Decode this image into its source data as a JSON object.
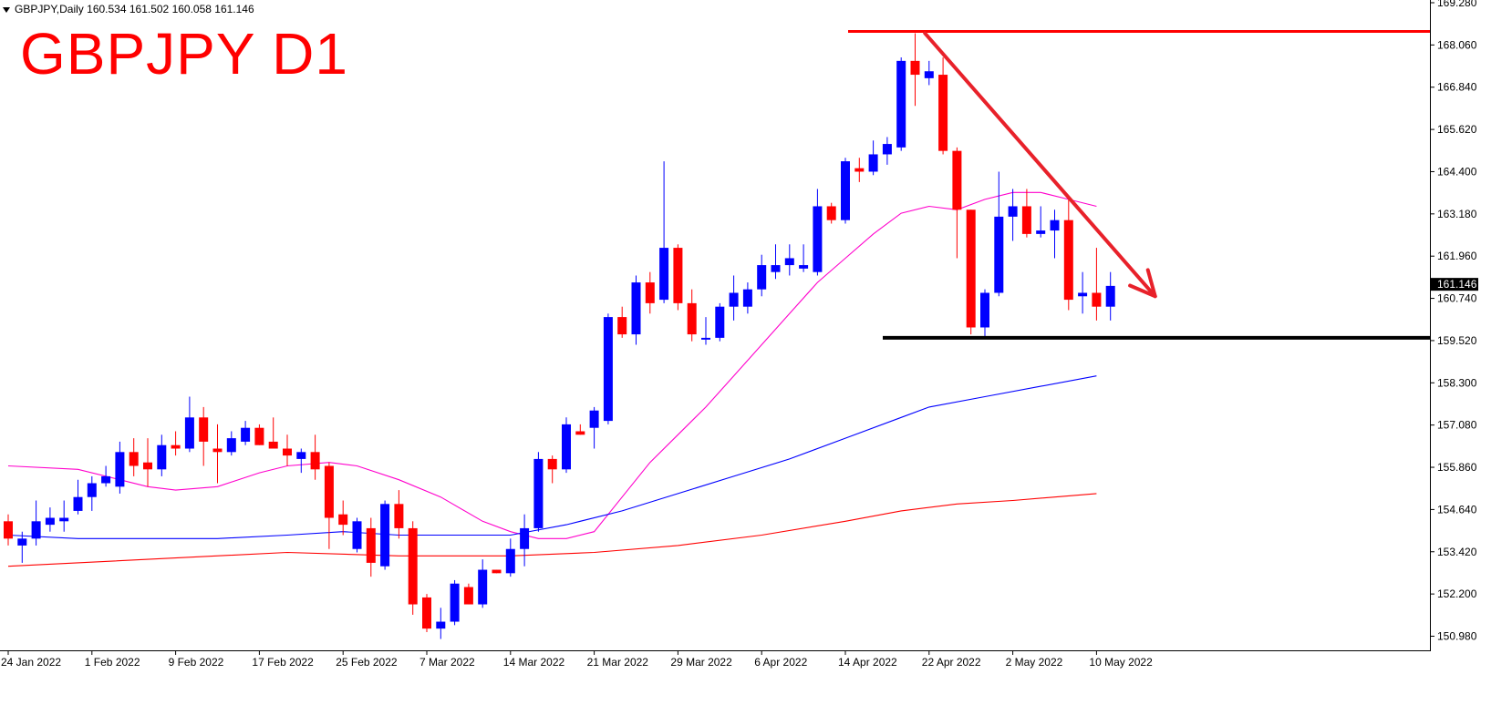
{
  "header": {
    "symbol_line": "GBPJPY,Daily  160.534 161.502 160.058 161.146"
  },
  "overlay_title": "GBPJPY D1",
  "chart_data": {
    "type": "candlestick",
    "symbol": "GBPJPY",
    "timeframe": "Daily",
    "ohlc_header": {
      "open": 160.534,
      "high": 161.502,
      "low": 160.058,
      "close": 161.146
    },
    "current_price_label": "161.146",
    "y_ticks": [
      "169.280",
      "168.060",
      "166.840",
      "165.620",
      "164.400",
      "163.180",
      "161.960",
      "160.740",
      "159.520",
      "158.300",
      "157.080",
      "155.860",
      "154.640",
      "153.420",
      "152.200",
      "150.980"
    ],
    "ylim": [
      150.7,
      169.4
    ],
    "x_labels": [
      {
        "text": "24 Jan 2022",
        "index": 0
      },
      {
        "text": "1 Feb 2022",
        "index": 6
      },
      {
        "text": "9 Feb 2022",
        "index": 12
      },
      {
        "text": "17 Feb 2022",
        "index": 18
      },
      {
        "text": "25 Feb 2022",
        "index": 24
      },
      {
        "text": "7 Mar 2022",
        "index": 30
      },
      {
        "text": "14 Mar 2022",
        "index": 36
      },
      {
        "text": "21 Mar 2022",
        "index": 42
      },
      {
        "text": "29 Mar 2022",
        "index": 48
      },
      {
        "text": "6 Apr 2022",
        "index": 54
      },
      {
        "text": "14 Apr 2022",
        "index": 60
      },
      {
        "text": "22 Apr 2022",
        "index": 66
      },
      {
        "text": "2 May 2022",
        "index": 72
      },
      {
        "text": "10 May 2022",
        "index": 78
      }
    ],
    "candles": [
      {
        "o": 154.3,
        "h": 154.5,
        "l": 153.6,
        "c": 153.8
      },
      {
        "o": 153.6,
        "h": 154.0,
        "l": 153.1,
        "c": 153.8
      },
      {
        "o": 153.8,
        "h": 154.9,
        "l": 153.6,
        "c": 154.3
      },
      {
        "o": 154.2,
        "h": 154.7,
        "l": 154.0,
        "c": 154.4
      },
      {
        "o": 154.3,
        "h": 154.9,
        "l": 154.0,
        "c": 154.4
      },
      {
        "o": 154.6,
        "h": 155.5,
        "l": 154.5,
        "c": 155.0
      },
      {
        "o": 155.0,
        "h": 155.6,
        "l": 154.6,
        "c": 155.4
      },
      {
        "o": 155.4,
        "h": 155.9,
        "l": 155.3,
        "c": 155.6
      },
      {
        "o": 155.3,
        "h": 156.6,
        "l": 155.1,
        "c": 156.3
      },
      {
        "o": 156.3,
        "h": 156.7,
        "l": 155.6,
        "c": 155.9
      },
      {
        "o": 156.0,
        "h": 156.7,
        "l": 155.3,
        "c": 155.8
      },
      {
        "o": 155.8,
        "h": 156.8,
        "l": 155.6,
        "c": 156.5
      },
      {
        "o": 156.5,
        "h": 156.9,
        "l": 156.2,
        "c": 156.4
      },
      {
        "o": 156.4,
        "h": 157.9,
        "l": 156.3,
        "c": 157.3
      },
      {
        "o": 157.3,
        "h": 157.6,
        "l": 155.9,
        "c": 156.6
      },
      {
        "o": 156.4,
        "h": 157.1,
        "l": 155.4,
        "c": 156.3
      },
      {
        "o": 156.3,
        "h": 156.9,
        "l": 156.2,
        "c": 156.7
      },
      {
        "o": 156.6,
        "h": 157.2,
        "l": 156.5,
        "c": 157.0
      },
      {
        "o": 157.0,
        "h": 157.1,
        "l": 156.5,
        "c": 156.5
      },
      {
        "o": 156.6,
        "h": 157.3,
        "l": 156.4,
        "c": 156.4
      },
      {
        "o": 156.4,
        "h": 156.8,
        "l": 155.9,
        "c": 156.2
      },
      {
        "o": 156.1,
        "h": 156.4,
        "l": 155.7,
        "c": 156.3
      },
      {
        "o": 156.3,
        "h": 156.8,
        "l": 155.5,
        "c": 155.8
      },
      {
        "o": 155.9,
        "h": 156.0,
        "l": 153.5,
        "c": 154.4
      },
      {
        "o": 154.5,
        "h": 154.9,
        "l": 153.9,
        "c": 154.2
      },
      {
        "o": 153.5,
        "h": 154.4,
        "l": 153.4,
        "c": 154.3
      },
      {
        "o": 154.1,
        "h": 154.4,
        "l": 152.7,
        "c": 153.1
      },
      {
        "o": 153.0,
        "h": 154.9,
        "l": 152.9,
        "c": 154.8
      },
      {
        "o": 154.8,
        "h": 155.2,
        "l": 153.8,
        "c": 154.1
      },
      {
        "o": 154.1,
        "h": 154.3,
        "l": 151.6,
        "c": 151.9
      },
      {
        "o": 152.1,
        "h": 152.2,
        "l": 151.1,
        "c": 151.2
      },
      {
        "o": 151.2,
        "h": 151.8,
        "l": 150.9,
        "c": 151.4
      },
      {
        "o": 151.4,
        "h": 152.6,
        "l": 151.3,
        "c": 152.5
      },
      {
        "o": 152.4,
        "h": 152.5,
        "l": 151.9,
        "c": 151.9
      },
      {
        "o": 151.9,
        "h": 153.2,
        "l": 151.8,
        "c": 152.9
      },
      {
        "o": 152.9,
        "h": 152.9,
        "l": 152.8,
        "c": 152.8
      },
      {
        "o": 152.8,
        "h": 153.8,
        "l": 152.7,
        "c": 153.5
      },
      {
        "o": 153.5,
        "h": 154.5,
        "l": 153.0,
        "c": 154.1
      },
      {
        "o": 154.1,
        "h": 156.3,
        "l": 154.0,
        "c": 156.1
      },
      {
        "o": 156.1,
        "h": 156.2,
        "l": 155.4,
        "c": 155.8
      },
      {
        "o": 155.8,
        "h": 157.3,
        "l": 155.7,
        "c": 157.1
      },
      {
        "o": 156.9,
        "h": 157.1,
        "l": 156.8,
        "c": 156.8
      },
      {
        "o": 157.0,
        "h": 157.6,
        "l": 156.4,
        "c": 157.5
      },
      {
        "o": 157.2,
        "h": 160.3,
        "l": 157.1,
        "c": 160.2
      },
      {
        "o": 160.2,
        "h": 160.5,
        "l": 159.6,
        "c": 159.7
      },
      {
        "o": 159.7,
        "h": 161.4,
        "l": 159.4,
        "c": 161.2
      },
      {
        "o": 161.2,
        "h": 161.5,
        "l": 160.3,
        "c": 160.6
      },
      {
        "o": 160.7,
        "h": 164.7,
        "l": 160.6,
        "c": 162.2
      },
      {
        "o": 162.2,
        "h": 162.3,
        "l": 160.4,
        "c": 160.6
      },
      {
        "o": 160.6,
        "h": 161.0,
        "l": 159.5,
        "c": 159.7
      },
      {
        "o": 159.6,
        "h": 160.2,
        "l": 159.4,
        "c": 159.6
      },
      {
        "o": 159.6,
        "h": 160.6,
        "l": 159.5,
        "c": 160.5
      },
      {
        "o": 160.5,
        "h": 161.4,
        "l": 160.1,
        "c": 160.9
      },
      {
        "o": 160.5,
        "h": 161.2,
        "l": 160.3,
        "c": 161.0
      },
      {
        "o": 161.0,
        "h": 162.0,
        "l": 160.8,
        "c": 161.7
      },
      {
        "o": 161.5,
        "h": 162.3,
        "l": 161.3,
        "c": 161.7
      },
      {
        "o": 161.7,
        "h": 162.3,
        "l": 161.4,
        "c": 161.9
      },
      {
        "o": 161.6,
        "h": 162.3,
        "l": 161.5,
        "c": 161.7
      },
      {
        "o": 161.5,
        "h": 163.9,
        "l": 161.4,
        "c": 163.4
      },
      {
        "o": 163.4,
        "h": 163.5,
        "l": 162.9,
        "c": 163.0
      },
      {
        "o": 163.0,
        "h": 164.8,
        "l": 162.9,
        "c": 164.7
      },
      {
        "o": 164.5,
        "h": 164.8,
        "l": 164.1,
        "c": 164.4
      },
      {
        "o": 164.4,
        "h": 165.3,
        "l": 164.3,
        "c": 164.9
      },
      {
        "o": 164.9,
        "h": 165.4,
        "l": 164.6,
        "c": 165.2
      },
      {
        "o": 165.1,
        "h": 167.7,
        "l": 165.0,
        "c": 167.6
      },
      {
        "o": 167.6,
        "h": 168.4,
        "l": 166.3,
        "c": 167.2
      },
      {
        "o": 167.1,
        "h": 167.6,
        "l": 166.9,
        "c": 167.3
      },
      {
        "o": 167.2,
        "h": 167.7,
        "l": 164.9,
        "c": 165.0
      },
      {
        "o": 165.0,
        "h": 165.1,
        "l": 161.9,
        "c": 163.3
      },
      {
        "o": 163.3,
        "h": 163.3,
        "l": 159.7,
        "c": 159.9
      },
      {
        "o": 159.9,
        "h": 161.0,
        "l": 159.6,
        "c": 160.9
      },
      {
        "o": 160.9,
        "h": 164.4,
        "l": 160.8,
        "c": 163.1
      },
      {
        "o": 163.1,
        "h": 163.9,
        "l": 162.4,
        "c": 163.4
      },
      {
        "o": 163.4,
        "h": 163.9,
        "l": 162.5,
        "c": 162.6
      },
      {
        "o": 162.6,
        "h": 163.4,
        "l": 162.5,
        "c": 162.7
      },
      {
        "o": 162.7,
        "h": 163.3,
        "l": 161.9,
        "c": 163.0
      },
      {
        "o": 163.0,
        "h": 163.6,
        "l": 160.4,
        "c": 160.7
      },
      {
        "o": 160.8,
        "h": 161.5,
        "l": 160.3,
        "c": 160.9
      },
      {
        "o": 160.9,
        "h": 162.2,
        "l": 160.1,
        "c": 160.5
      },
      {
        "o": 160.5,
        "h": 161.5,
        "l": 160.1,
        "c": 161.1
      }
    ],
    "moving_averages": [
      {
        "color": "#ff00cc",
        "points": [
          [
            0,
            155.9
          ],
          [
            5,
            155.8
          ],
          [
            8,
            155.5
          ],
          [
            10,
            155.3
          ],
          [
            12,
            155.2
          ],
          [
            15,
            155.3
          ],
          [
            18,
            155.7
          ],
          [
            20,
            155.9
          ],
          [
            23,
            156.0
          ],
          [
            25,
            155.9
          ],
          [
            28,
            155.5
          ],
          [
            31,
            155.0
          ],
          [
            34,
            154.3
          ],
          [
            36,
            154.0
          ],
          [
            38,
            153.8
          ],
          [
            40,
            153.8
          ],
          [
            42,
            154.0
          ],
          [
            44,
            155.0
          ],
          [
            46,
            156.0
          ],
          [
            48,
            156.8
          ],
          [
            50,
            157.6
          ],
          [
            52,
            158.5
          ],
          [
            54,
            159.4
          ],
          [
            56,
            160.3
          ],
          [
            58,
            161.2
          ],
          [
            60,
            161.9
          ],
          [
            62,
            162.6
          ],
          [
            64,
            163.2
          ],
          [
            66,
            163.4
          ],
          [
            68,
            163.3
          ],
          [
            70,
            163.6
          ],
          [
            72,
            163.8
          ],
          [
            74,
            163.8
          ],
          [
            76,
            163.6
          ],
          [
            78,
            163.4
          ]
        ]
      },
      {
        "color": "#0000ff",
        "points": [
          [
            0,
            153.9
          ],
          [
            5,
            153.8
          ],
          [
            10,
            153.8
          ],
          [
            15,
            153.8
          ],
          [
            20,
            153.9
          ],
          [
            24,
            154.0
          ],
          [
            28,
            153.9
          ],
          [
            32,
            153.9
          ],
          [
            36,
            153.9
          ],
          [
            40,
            154.2
          ],
          [
            44,
            154.6
          ],
          [
            48,
            155.1
          ],
          [
            52,
            155.6
          ],
          [
            56,
            156.1
          ],
          [
            60,
            156.7
          ],
          [
            64,
            157.3
          ],
          [
            66,
            157.6
          ],
          [
            70,
            157.9
          ],
          [
            74,
            158.2
          ],
          [
            78,
            158.5
          ]
        ]
      },
      {
        "color": "#ff0000",
        "points": [
          [
            0,
            153.0
          ],
          [
            10,
            153.2
          ],
          [
            20,
            153.4
          ],
          [
            28,
            153.3
          ],
          [
            36,
            153.3
          ],
          [
            42,
            153.4
          ],
          [
            48,
            153.6
          ],
          [
            54,
            153.9
          ],
          [
            60,
            154.3
          ],
          [
            64,
            154.6
          ],
          [
            68,
            154.8
          ],
          [
            72,
            154.9
          ],
          [
            78,
            155.1
          ]
        ]
      }
    ],
    "resistance_level": 168.45,
    "support_level": 159.6,
    "trend_arrow": {
      "from": [
        65.7,
        168.4
      ],
      "to": [
        82.2,
        160.8
      ]
    }
  }
}
